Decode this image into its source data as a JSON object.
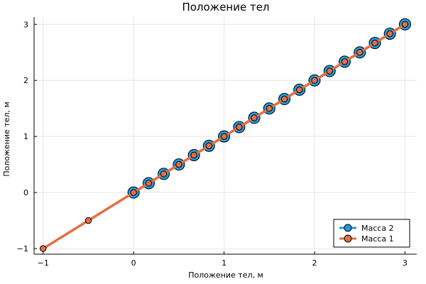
{
  "chart_data": {
    "type": "line",
    "title": "Положение тел",
    "xlabel": "Положение тел, м",
    "ylabel": "Положение тел, м",
    "xlim": [
      -1.1,
      3.13
    ],
    "ylim": [
      -1.1,
      3.13
    ],
    "x_ticks": [
      -1,
      0,
      1,
      2,
      3
    ],
    "y_ticks": [
      -1,
      0,
      1,
      2,
      3
    ],
    "x_tick_labels": [
      "−1",
      "0",
      "1",
      "2",
      "3"
    ],
    "y_tick_labels": [
      "−1",
      "0",
      "1",
      "2",
      "3"
    ],
    "grid": true,
    "legend_position": "bottom-right",
    "series": [
      {
        "name": "Масса 2",
        "color": "#1f9bde",
        "marker": "circle-large",
        "x": [
          0,
          0.167,
          0.333,
          0.5,
          0.667,
          0.833,
          1.0,
          1.167,
          1.333,
          1.5,
          1.667,
          1.833,
          2.0,
          2.167,
          2.333,
          2.5,
          2.667,
          2.833,
          3.0
        ],
        "y": [
          0,
          0.167,
          0.333,
          0.5,
          0.667,
          0.833,
          1.0,
          1.167,
          1.333,
          1.5,
          1.667,
          1.833,
          2.0,
          2.167,
          2.333,
          2.5,
          2.667,
          2.833,
          3.0
        ]
      },
      {
        "name": "Масса 1",
        "color": "#e26f46",
        "marker": "circle-small",
        "x": [
          -1,
          -0.5,
          0,
          0.167,
          0.333,
          0.5,
          0.667,
          0.833,
          1.0,
          1.167,
          1.333,
          1.5,
          1.667,
          1.833,
          2.0,
          2.167,
          2.333,
          2.5,
          2.667,
          2.833,
          3.0
        ],
        "y": [
          -1,
          -0.5,
          0,
          0.167,
          0.333,
          0.5,
          0.667,
          0.833,
          1.0,
          1.167,
          1.333,
          1.5,
          1.667,
          1.833,
          2.0,
          2.167,
          2.333,
          2.5,
          2.667,
          2.833,
          3.0
        ]
      }
    ]
  }
}
